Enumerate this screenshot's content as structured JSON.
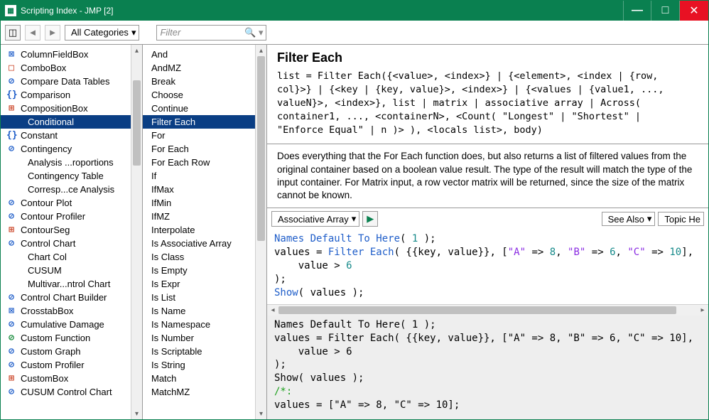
{
  "window": {
    "title": "Scripting Index - JMP [2]"
  },
  "toolbar": {
    "category": "All Categories",
    "filter_placeholder": "Filter"
  },
  "tree": [
    {
      "icon": "⊠",
      "cls": "c-blue",
      "label": "ColumnFieldBox"
    },
    {
      "icon": "□",
      "cls": "c-red",
      "label": "ComboBox"
    },
    {
      "icon": "⊘",
      "cls": "c-blue",
      "label": "Compare Data Tables"
    },
    {
      "icon": "{}",
      "cls": "c-blue",
      "label": "Comparison"
    },
    {
      "icon": "⊞",
      "cls": "c-red",
      "label": "CompositionBox"
    },
    {
      "icon": "",
      "cls": "",
      "label": "Conditional",
      "selected": true,
      "indent": true
    },
    {
      "icon": "{}",
      "cls": "c-blue",
      "label": "Constant"
    },
    {
      "icon": "⊘",
      "cls": "c-blue",
      "label": "Contingency"
    },
    {
      "icon": "",
      "cls": "",
      "label": "Analysis ...roportions",
      "indent": true
    },
    {
      "icon": "",
      "cls": "",
      "label": "Contingency Table",
      "indent": true
    },
    {
      "icon": "",
      "cls": "",
      "label": "Corresp...ce Analysis",
      "indent": true
    },
    {
      "icon": "⊘",
      "cls": "c-blue",
      "label": "Contour Plot"
    },
    {
      "icon": "⊘",
      "cls": "c-blue",
      "label": "Contour Profiler"
    },
    {
      "icon": "⊞",
      "cls": "c-red",
      "label": "ContourSeg"
    },
    {
      "icon": "⊘",
      "cls": "c-blue",
      "label": "Control Chart"
    },
    {
      "icon": "",
      "cls": "",
      "label": "Chart Col",
      "indent": true
    },
    {
      "icon": "",
      "cls": "",
      "label": "CUSUM",
      "indent": true
    },
    {
      "icon": "",
      "cls": "",
      "label": "Multivar...ntrol Chart",
      "indent": true
    },
    {
      "icon": "⊘",
      "cls": "c-blue",
      "label": "Control Chart Builder"
    },
    {
      "icon": "⊠",
      "cls": "c-blue",
      "label": "CrosstabBox"
    },
    {
      "icon": "⊘",
      "cls": "c-blue",
      "label": "Cumulative Damage"
    },
    {
      "icon": "⊘",
      "cls": "c-green",
      "label": "Custom Function"
    },
    {
      "icon": "⊘",
      "cls": "c-blue",
      "label": "Custom Graph"
    },
    {
      "icon": "⊘",
      "cls": "c-blue",
      "label": "Custom Profiler"
    },
    {
      "icon": "⊞",
      "cls": "c-red",
      "label": "CustomBox"
    },
    {
      "icon": "⊘",
      "cls": "c-blue",
      "label": "CUSUM Control Chart"
    }
  ],
  "functions": [
    "And",
    "AndMZ",
    "Break",
    "Choose",
    "Continue",
    "Filter Each",
    "For",
    "For Each",
    "For Each Row",
    "If",
    "IfMax",
    "IfMin",
    "IfMZ",
    "Interpolate",
    "Is Associative Array",
    "Is Class",
    "Is Empty",
    "Is Expr",
    "Is List",
    "Is Name",
    "Is Namespace",
    "Is Number",
    "Is Scriptable",
    "Is String",
    "Match",
    "MatchMZ"
  ],
  "functions_selected": "Filter Each",
  "doc": {
    "title": "Filter Each",
    "syntax": "list = Filter Each({<value>, <index>} | {<element>, <index | {row,\ncol}>} | {<key | {key, value}>, <index>} | {<values | {value1, ...,\nvalueN}>, <index>}, list | matrix | associative array | Across(\ncontainer1, ..., <containerN>, <Count( \"Longest\" | \"Shortest\" |\n\"Enforce Equal\" | n )> ), <locals list>, body)",
    "description": "Does everything that the For Each function does, but also returns a list of filtered values from the original container based on a boolean value result. The type of the result will match the type of the input container. For Matrix input, a row vector matrix will be returned, since the size of the matrix cannot be known."
  },
  "example": {
    "type": "Associative Array",
    "see_also": "See Also",
    "topic": "Topic He"
  },
  "code1_lines": [
    [
      {
        "t": "Names Default To Here",
        "c": "kw-blue"
      },
      {
        "t": "( "
      },
      {
        "t": "1",
        "c": "kw-teal"
      },
      {
        "t": " );"
      }
    ],
    [
      {
        "t": "values = "
      },
      {
        "t": "Filter Each",
        "c": "kw-blue"
      },
      {
        "t": "( {{key, value}}, ["
      },
      {
        "t": "\"A\"",
        "c": "kw-str"
      },
      {
        "t": " => "
      },
      {
        "t": "8",
        "c": "kw-teal"
      },
      {
        "t": ", "
      },
      {
        "t": "\"B\"",
        "c": "kw-str"
      },
      {
        "t": " => "
      },
      {
        "t": "6",
        "c": "kw-teal"
      },
      {
        "t": ", "
      },
      {
        "t": "\"C\"",
        "c": "kw-str"
      },
      {
        "t": " => "
      },
      {
        "t": "10",
        "c": "kw-teal"
      },
      {
        "t": "],"
      }
    ],
    [
      {
        "t": "    value > "
      },
      {
        "t": "6",
        "c": "kw-teal"
      }
    ],
    [
      {
        "t": ");"
      }
    ],
    [
      {
        "t": "Show",
        "c": "kw-blue"
      },
      {
        "t": "( values );"
      }
    ]
  ],
  "code2_lines": [
    [
      {
        "t": "Names Default To Here( 1 );"
      }
    ],
    [
      {
        "t": "values = Filter Each( {{key, value}}, [\"A\" => 8, \"B\" => 6, \"C\" => 10],"
      }
    ],
    [
      {
        "t": "    value > 6"
      }
    ],
    [
      {
        "t": ");"
      }
    ],
    [
      {
        "t": "Show( values );"
      }
    ],
    [
      {
        "t": "/*:",
        "c": "kw-cmt"
      }
    ],
    [
      {
        "t": ""
      }
    ],
    [
      {
        "t": "values = [\"A\" => 8, \"C\" => 10];"
      }
    ]
  ]
}
